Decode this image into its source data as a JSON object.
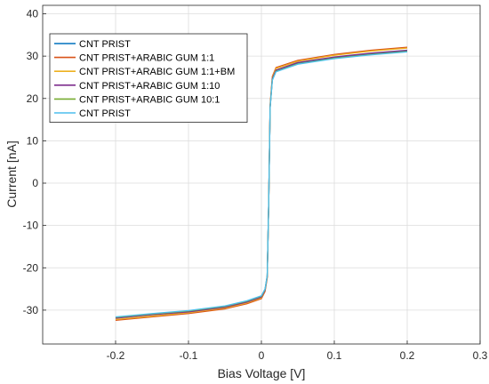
{
  "chart_data": {
    "type": "line",
    "xlabel": "Bias Voltage [V]",
    "ylabel": "Current [nA]",
    "xlim": [
      -0.3,
      0.3
    ],
    "ylim": [
      -38,
      42
    ],
    "xticks": [
      -0.2,
      -0.1,
      0,
      0.1,
      0.2,
      0.3
    ],
    "xtick_labels": [
      "-0.2",
      "-0.1",
      "0",
      "0.1",
      "0.2",
      "0.3"
    ],
    "yticks": [
      -30,
      -20,
      -10,
      0,
      10,
      20,
      30,
      40
    ],
    "ytick_labels": [
      "-30",
      "-20",
      "-10",
      "0",
      "10",
      "20",
      "30",
      "40"
    ],
    "grid": true,
    "legend_position": "top-left",
    "x": [
      -0.2,
      -0.15,
      -0.1,
      -0.05,
      -0.02,
      0,
      0.005,
      0.008,
      0.01,
      0.012,
      0.015,
      0.02,
      0.05,
      0.1,
      0.15,
      0.2
    ],
    "series": [
      {
        "name": "CNT PRIST",
        "color": "#0072BD",
        "values": [
          -31.8,
          -31.0,
          -30.3,
          -29.2,
          -28.0,
          -26.8,
          -25.2,
          -22.0,
          -5.0,
          18.0,
          24.5,
          26.5,
          28.3,
          29.6,
          30.5,
          31.2
        ]
      },
      {
        "name": "CNT PRIST+ARABIC GUM 1:1",
        "color": "#D95319",
        "values": [
          -32.4,
          -31.6,
          -30.8,
          -29.7,
          -28.5,
          -27.3,
          -25.6,
          -22.4,
          -5.2,
          18.5,
          25.2,
          27.3,
          29.0,
          30.4,
          31.4,
          32.1
        ]
      },
      {
        "name": "CNT PRIST+ARABIC GUM 1:1+BM",
        "color": "#EDB120",
        "values": [
          -32.2,
          -31.4,
          -30.6,
          -29.5,
          -28.3,
          -27.1,
          -25.4,
          -22.2,
          -5.1,
          18.3,
          25.0,
          27.1,
          28.8,
          30.2,
          31.2,
          31.9
        ]
      },
      {
        "name": "CNT PRIST+ARABIC GUM 1:10",
        "color": "#7E2F8E",
        "values": [
          -31.9,
          -31.1,
          -30.4,
          -29.3,
          -28.1,
          -26.9,
          -25.3,
          -22.1,
          -5.0,
          18.1,
          24.7,
          26.7,
          28.5,
          29.8,
          30.7,
          31.4
        ]
      },
      {
        "name": "CNT PRIST+ARABIC GUM 10:1",
        "color": "#77AC30",
        "values": [
          -31.7,
          -30.9,
          -30.2,
          -29.1,
          -27.9,
          -26.7,
          -25.1,
          -21.9,
          -4.9,
          17.9,
          24.4,
          26.4,
          28.2,
          29.5,
          30.4,
          31.1
        ]
      },
      {
        "name": "CNT PRIST",
        "color": "#4DBEEE",
        "values": [
          -31.6,
          -30.8,
          -30.1,
          -29.0,
          -27.8,
          -26.6,
          -25.0,
          -21.8,
          -4.8,
          17.8,
          24.3,
          26.3,
          28.1,
          29.4,
          30.3,
          31.0
        ]
      }
    ]
  }
}
